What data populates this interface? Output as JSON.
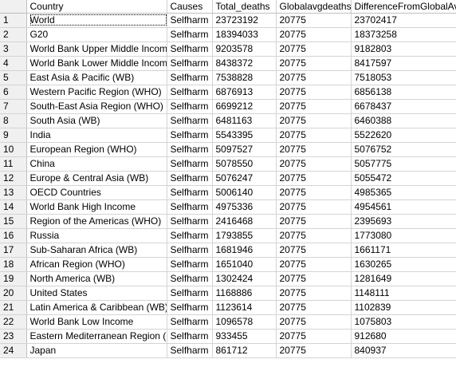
{
  "columns": {
    "rownum": "",
    "country": "Country",
    "causes": "Causes",
    "total_deaths": "Total_deaths",
    "globalavg": "Globalavgdeaths",
    "difference": "DifferenceFromGlobalAvg"
  },
  "rows": [
    {
      "n": "1",
      "country": "World",
      "causes": "Selfharm",
      "total": "23723192",
      "avg": "20775",
      "diff": "23702417"
    },
    {
      "n": "2",
      "country": "G20",
      "causes": "Selfharm",
      "total": "18394033",
      "avg": "20775",
      "diff": "18373258"
    },
    {
      "n": "3",
      "country": "World Bank Upper Middle Income",
      "causes": "Selfharm",
      "total": "9203578",
      "avg": "20775",
      "diff": "9182803"
    },
    {
      "n": "4",
      "country": "World Bank Lower Middle Income",
      "causes": "Selfharm",
      "total": "8438372",
      "avg": "20775",
      "diff": "8417597"
    },
    {
      "n": "5",
      "country": "East Asia & Pacific (WB)",
      "causes": "Selfharm",
      "total": "7538828",
      "avg": "20775",
      "diff": "7518053"
    },
    {
      "n": "6",
      "country": "Western Pacific Region (WHO)",
      "causes": "Selfharm",
      "total": "6876913",
      "avg": "20775",
      "diff": "6856138"
    },
    {
      "n": "7",
      "country": "South-East Asia Region (WHO)",
      "causes": "Selfharm",
      "total": "6699212",
      "avg": "20775",
      "diff": "6678437"
    },
    {
      "n": "8",
      "country": "South Asia (WB)",
      "causes": "Selfharm",
      "total": "6481163",
      "avg": "20775",
      "diff": "6460388"
    },
    {
      "n": "9",
      "country": "India",
      "causes": "Selfharm",
      "total": "5543395",
      "avg": "20775",
      "diff": "5522620"
    },
    {
      "n": "10",
      "country": "European Region (WHO)",
      "causes": "Selfharm",
      "total": "5097527",
      "avg": "20775",
      "diff": "5076752"
    },
    {
      "n": "11",
      "country": "China",
      "causes": "Selfharm",
      "total": "5078550",
      "avg": "20775",
      "diff": "5057775"
    },
    {
      "n": "12",
      "country": "Europe & Central Asia (WB)",
      "causes": "Selfharm",
      "total": "5076247",
      "avg": "20775",
      "diff": "5055472"
    },
    {
      "n": "13",
      "country": "OECD Countries",
      "causes": "Selfharm",
      "total": "5006140",
      "avg": "20775",
      "diff": "4985365"
    },
    {
      "n": "14",
      "country": "World Bank High Income",
      "causes": "Selfharm",
      "total": "4975336",
      "avg": "20775",
      "diff": "4954561"
    },
    {
      "n": "15",
      "country": "Region of the Americas (WHO)",
      "causes": "Selfharm",
      "total": "2416468",
      "avg": "20775",
      "diff": "2395693"
    },
    {
      "n": "16",
      "country": "Russia",
      "causes": "Selfharm",
      "total": "1793855",
      "avg": "20775",
      "diff": "1773080"
    },
    {
      "n": "17",
      "country": "Sub-Saharan Africa (WB)",
      "causes": "Selfharm",
      "total": "1681946",
      "avg": "20775",
      "diff": "1661171"
    },
    {
      "n": "18",
      "country": "African Region (WHO)",
      "causes": "Selfharm",
      "total": "1651040",
      "avg": "20775",
      "diff": "1630265"
    },
    {
      "n": "19",
      "country": "North America (WB)",
      "causes": "Selfharm",
      "total": "1302424",
      "avg": "20775",
      "diff": "1281649"
    },
    {
      "n": "20",
      "country": "United States",
      "causes": "Selfharm",
      "total": "1168886",
      "avg": "20775",
      "diff": "1148111"
    },
    {
      "n": "21",
      "country": "Latin America & Caribbean (WB)",
      "causes": "Selfharm",
      "total": "1123614",
      "avg": "20775",
      "diff": "1102839"
    },
    {
      "n": "22",
      "country": "World Bank Low Income",
      "causes": "Selfharm",
      "total": "1096578",
      "avg": "20775",
      "diff": "1075803"
    },
    {
      "n": "23",
      "country": "Eastern Mediterranean Region (...",
      "causes": "Selfharm",
      "total": "933455",
      "avg": "20775",
      "diff": "912680"
    },
    {
      "n": "24",
      "country": "Japan",
      "causes": "Selfharm",
      "total": "861712",
      "avg": "20775",
      "diff": "840937"
    }
  ],
  "selected_row": "1"
}
